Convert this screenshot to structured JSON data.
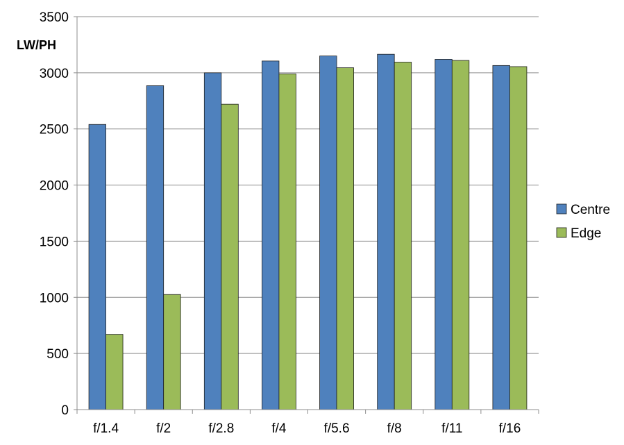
{
  "chart_data": {
    "type": "bar",
    "title": "",
    "xlabel": "",
    "ylabel": "LW/PH",
    "categories": [
      "f/1.4",
      "f/2",
      "f/2.8",
      "f/4",
      "f/5.6",
      "f/8",
      "f/11",
      "f/16"
    ],
    "series": [
      {
        "name": "Centre",
        "color": "#4f81bd",
        "values": [
          2540,
          2885,
          3000,
          3105,
          3150,
          3165,
          3120,
          3065
        ]
      },
      {
        "name": "Edge",
        "color": "#9bbb59",
        "values": [
          670,
          1025,
          2720,
          2990,
          3045,
          3095,
          3110,
          3055
        ]
      }
    ],
    "ylim": [
      0,
      3500
    ],
    "yticks": [
      0,
      500,
      1000,
      1500,
      2000,
      2500,
      3000,
      3500
    ],
    "grid": true,
    "legend_position": "right"
  }
}
